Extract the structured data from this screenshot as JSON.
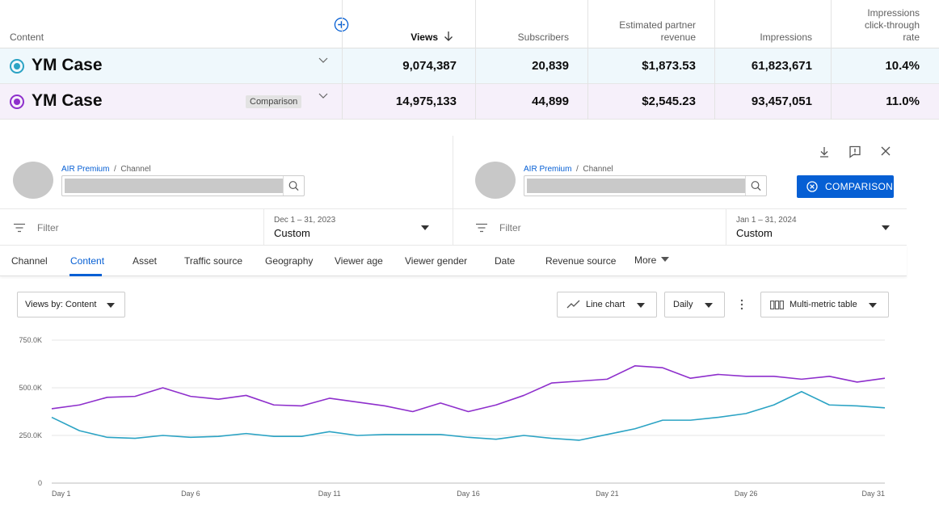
{
  "table": {
    "headers": {
      "content": "Content",
      "views": "Views",
      "subscribers": "Subscribers",
      "revenue_l1": "Estimated partner",
      "revenue_l2": "revenue",
      "impressions": "Impressions",
      "ctr_l1": "Impressions",
      "ctr_l2": "click-through",
      "ctr_l3": "rate"
    },
    "rows": [
      {
        "name": "YM Case",
        "badge": "",
        "color": "#2ba3c4",
        "views": "9,074,387",
        "subscribers": "20,839",
        "revenue": "$1,873.53",
        "impressions": "61,823,671",
        "ctr": "10.4%"
      },
      {
        "name": "YM Case",
        "badge": "Comparison",
        "color": "#8e2fcc",
        "views": "14,975,133",
        "subscribers": "44,899",
        "revenue": "$2,545.23",
        "impressions": "93,457,051",
        "ctr": "11.0%"
      }
    ]
  },
  "pickers": [
    {
      "crumb_link": "AIR Premium",
      "crumb_sep": "/",
      "crumb_page": "Channel"
    },
    {
      "crumb_link": "AIR Premium",
      "crumb_sep": "/",
      "crumb_page": "Channel"
    }
  ],
  "comparison_button": "COMPARISON",
  "filters": [
    {
      "placeholder": "Filter",
      "date_range": "Dec 1 – 31, 2023",
      "date_mode": "Custom"
    },
    {
      "placeholder": "Filter",
      "date_range": "Jan 1 – 31, 2024",
      "date_mode": "Custom"
    }
  ],
  "tabs": [
    "Channel",
    "Content",
    "Asset",
    "Traffic source",
    "Geography",
    "Viewer age",
    "Viewer gender",
    "Date",
    "Revenue source",
    "More"
  ],
  "active_tab": "Content",
  "controls": {
    "views_by": "Views by: Content",
    "chart_type": "Line chart",
    "granularity": "Daily",
    "table_type": "Multi-metric table"
  },
  "colors": {
    "accent": "#065fd4",
    "series1": "#2ba3c4",
    "series2": "#8e2fcc"
  },
  "chart_data": {
    "type": "line",
    "x_ticks": [
      "Day 1",
      "Day 6",
      "Day 11",
      "Day 16",
      "Day 21",
      "Day 26",
      "Day 31"
    ],
    "y_ticks": [
      "0",
      "250.0K",
      "500.0K",
      "750.0K"
    ],
    "ylim": [
      0,
      750000
    ],
    "grid": true,
    "x": [
      1,
      2,
      3,
      4,
      5,
      6,
      7,
      8,
      9,
      10,
      11,
      12,
      13,
      14,
      15,
      16,
      17,
      18,
      19,
      20,
      21,
      22,
      23,
      24,
      25,
      26,
      27,
      28,
      29,
      30,
      31
    ],
    "series": [
      {
        "color": "#8e2fcc",
        "values": [
          390000,
          410000,
          450000,
          455000,
          500000,
          455000,
          440000,
          460000,
          410000,
          405000,
          445000,
          425000,
          405000,
          375000,
          420000,
          375000,
          410000,
          460000,
          525000,
          535000,
          545000,
          615000,
          605000,
          550000,
          570000,
          560000,
          560000,
          545000,
          560000,
          530000,
          550000
        ]
      },
      {
        "color": "#2ba3c4",
        "values": [
          345000,
          275000,
          240000,
          235000,
          250000,
          240000,
          245000,
          260000,
          245000,
          245000,
          270000,
          250000,
          255000,
          255000,
          255000,
          240000,
          230000,
          250000,
          235000,
          225000,
          255000,
          285000,
          330000,
          330000,
          345000,
          365000,
          410000,
          480000,
          410000,
          405000,
          395000
        ]
      }
    ]
  }
}
